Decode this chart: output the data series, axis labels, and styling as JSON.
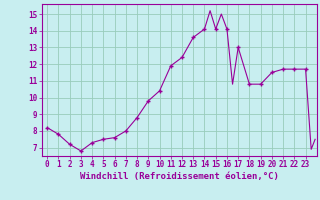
{
  "x_full": [
    0,
    1,
    2,
    3,
    4,
    5,
    6,
    7,
    8,
    9,
    10,
    11,
    12,
    13,
    14,
    14.5,
    15,
    15.5,
    16,
    16.5,
    17,
    18,
    19,
    20,
    21,
    22,
    23,
    23.5,
    23.85
  ],
  "y_full": [
    8.2,
    7.8,
    7.2,
    6.8,
    7.3,
    7.5,
    7.6,
    8.0,
    8.8,
    9.8,
    10.4,
    11.9,
    12.4,
    13.6,
    14.1,
    15.2,
    14.1,
    15.0,
    14.1,
    10.8,
    13.0,
    10.8,
    10.8,
    11.5,
    11.7,
    11.7,
    11.7,
    6.9,
    7.5
  ],
  "marker_x": [
    0,
    1,
    2,
    3,
    4,
    5,
    6,
    7,
    8,
    9,
    10,
    11,
    12,
    13,
    14,
    15,
    16,
    17,
    18,
    19,
    20,
    21,
    22,
    23
  ],
  "marker_y": [
    8.2,
    7.8,
    7.2,
    6.8,
    7.3,
    7.5,
    7.6,
    8.0,
    8.8,
    9.8,
    10.4,
    11.9,
    12.4,
    13.6,
    14.1,
    14.1,
    14.1,
    13.0,
    10.8,
    10.8,
    11.5,
    11.7,
    11.7,
    11.7
  ],
  "line_color": "#990099",
  "marker_color": "#990099",
  "bg_color": "#c8eef0",
  "grid_color": "#99ccbb",
  "xlabel": "Windchill (Refroidissement éolien,°C)",
  "xlabel_color": "#990099",
  "ylim": [
    6.5,
    15.6
  ],
  "xlim": [
    -0.5,
    24.0
  ],
  "yticks": [
    7,
    8,
    9,
    10,
    11,
    12,
    13,
    14,
    15
  ],
  "xticks": [
    0,
    1,
    2,
    3,
    4,
    5,
    6,
    7,
    8,
    9,
    10,
    11,
    12,
    13,
    14,
    15,
    16,
    17,
    18,
    19,
    20,
    21,
    22,
    23
  ],
  "tick_fontsize": 5.5,
  "label_fontsize": 6.5
}
